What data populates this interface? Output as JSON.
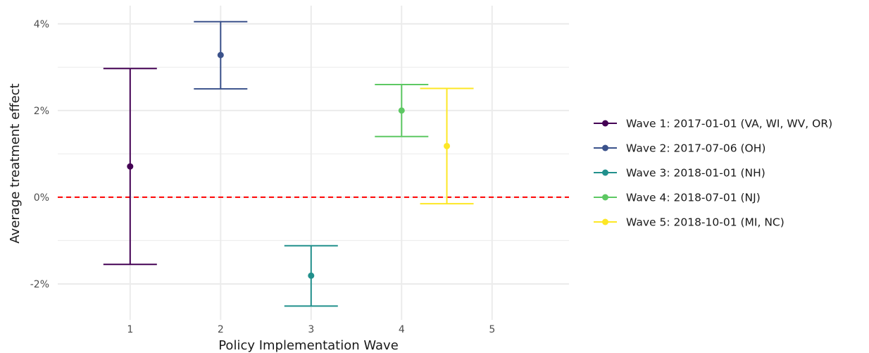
{
  "chart_data": {
    "type": "errorbar",
    "title": "",
    "xlabel": "Policy Implementation Wave",
    "ylabel": "Average treatment effect",
    "x_ticks": [
      1,
      2,
      3,
      4,
      5
    ],
    "x_tick_labels": [
      "1",
      "2",
      "3",
      "4",
      "5"
    ],
    "y_ticks": [
      -0.02,
      0,
      0.02,
      0.04
    ],
    "y_tick_labels": [
      "-2%",
      "0%",
      "2%",
      "4%"
    ],
    "xlim": [
      0.2,
      5.85
    ],
    "ylim": [
      -0.0283,
      0.0442
    ],
    "grid": true,
    "reference_line": {
      "y": 0,
      "color": "#ff0000",
      "style": "dashed"
    },
    "legend_position": "right",
    "series": [
      {
        "name": "Wave 1: 2017-01-01 (VA, WI, WV, OR)",
        "x": 1,
        "estimate": 0.0071,
        "lower": -0.0155,
        "upper": 0.0297,
        "color": "#440154"
      },
      {
        "name": "Wave 2: 2017-07-06 (OH)",
        "x": 2,
        "estimate": 0.0328,
        "lower": 0.025,
        "upper": 0.0405,
        "color": "#3b528b"
      },
      {
        "name": "Wave 3: 2018-01-01 (NH)",
        "x": 3,
        "estimate": -0.0181,
        "lower": -0.0251,
        "upper": -0.0112,
        "color": "#21908c"
      },
      {
        "name": "Wave 4: 2018-07-01 (NJ)",
        "x": 4,
        "estimate": 0.02,
        "lower": 0.014,
        "upper": 0.026,
        "color": "#5dc863"
      },
      {
        "name": "Wave 5: 2018-10-01 (MI, NC)",
        "x": 4.5,
        "estimate": 0.0118,
        "lower": -0.0015,
        "upper": 0.0251,
        "color": "#fde725"
      }
    ]
  }
}
